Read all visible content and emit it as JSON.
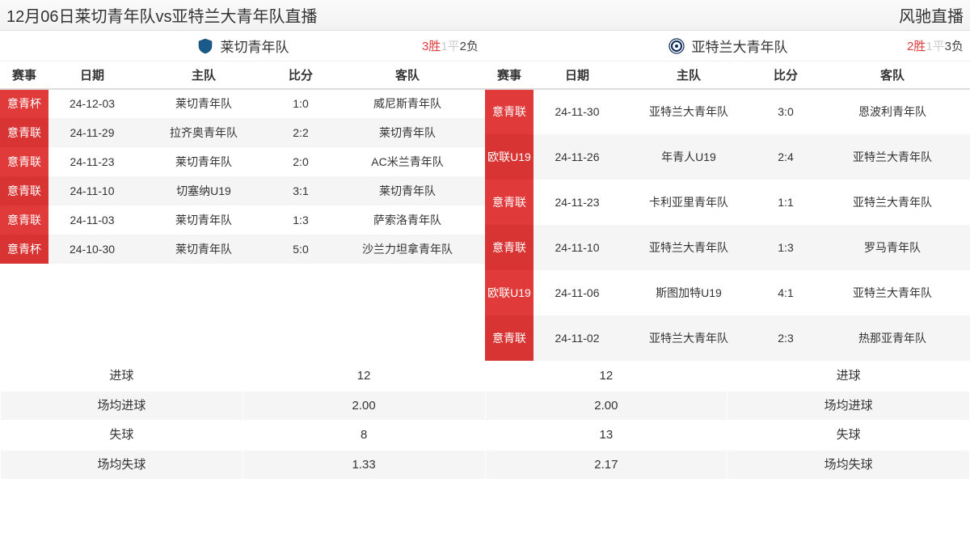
{
  "header": {
    "title_left": "12月06日莱切青年队vs亚特兰大青年队直播",
    "title_right": "风驰直播"
  },
  "columns": {
    "comp": "赛事",
    "date": "日期",
    "home": "主队",
    "score": "比分",
    "away": "客队"
  },
  "colors": {
    "accent_red": "#e03a3a",
    "logo_left": "#1a5a8a",
    "logo_right": "#0a2a5a"
  },
  "left": {
    "team_name": "莱切青年队",
    "record": {
      "win": "3胜",
      "draw": "1平",
      "loss": "2负"
    },
    "matches": [
      {
        "comp": "意青杯",
        "date": "24-12-03",
        "home": "莱切青年队",
        "score": "1:0",
        "away": "威尼斯青年队"
      },
      {
        "comp": "意青联",
        "date": "24-11-29",
        "home": "拉齐奥青年队",
        "score": "2:2",
        "away": "莱切青年队"
      },
      {
        "comp": "意青联",
        "date": "24-11-23",
        "home": "莱切青年队",
        "score": "2:0",
        "away": "AC米兰青年队"
      },
      {
        "comp": "意青联",
        "date": "24-11-10",
        "home": "切塞纳U19",
        "score": "3:1",
        "away": "莱切青年队"
      },
      {
        "comp": "意青联",
        "date": "24-11-03",
        "home": "莱切青年队",
        "score": "1:3",
        "away": "萨索洛青年队"
      },
      {
        "comp": "意青杯",
        "date": "24-10-30",
        "home": "莱切青年队",
        "score": "5:0",
        "away": "沙兰力坦拿青年队"
      }
    ]
  },
  "right": {
    "team_name": "亚特兰大青年队",
    "record": {
      "win": "2胜",
      "draw": "1平",
      "loss": "3负"
    },
    "matches": [
      {
        "comp": "意青联",
        "date": "24-11-30",
        "home": "亚特兰大青年队",
        "score": "3:0",
        "away": "恩波利青年队"
      },
      {
        "comp": "欧联U19",
        "date": "24-11-26",
        "home": "年青人U19",
        "score": "2:4",
        "away": "亚特兰大青年队"
      },
      {
        "comp": "意青联",
        "date": "24-11-23",
        "home": "卡利亚里青年队",
        "score": "1:1",
        "away": "亚特兰大青年队"
      },
      {
        "comp": "意青联",
        "date": "24-11-10",
        "home": "亚特兰大青年队",
        "score": "1:3",
        "away": "罗马青年队"
      },
      {
        "comp": "欧联U19",
        "date": "24-11-06",
        "home": "斯图加特U19",
        "score": "4:1",
        "away": "亚特兰大青年队"
      },
      {
        "comp": "意青联",
        "date": "24-11-02",
        "home": "亚特兰大青年队",
        "score": "2:3",
        "away": "热那亚青年队"
      }
    ]
  },
  "stats": {
    "labels": {
      "goals": "进球",
      "avg_goals": "场均进球",
      "conceded": "失球",
      "avg_conceded": "场均失球"
    },
    "left": {
      "goals": "12",
      "avg_goals": "2.00",
      "conceded": "8",
      "avg_conceded": "1.33"
    },
    "right": {
      "goals": "12",
      "avg_goals": "2.00",
      "conceded": "13",
      "avg_conceded": "2.17"
    }
  }
}
